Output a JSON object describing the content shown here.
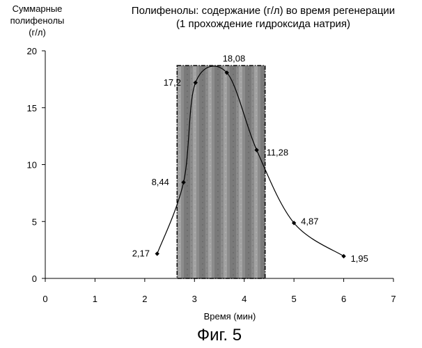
{
  "chart_data": {
    "type": "scatter",
    "title_lines": [
      "Полифенолы: содержание (г/л) во время регенерации",
      "(1 прохождение гидроксида натрия)"
    ],
    "ylabel_lines": [
      "Суммарные",
      "полифенолы",
      "(г/л)"
    ],
    "xlabel": "Время  (мин)",
    "xlim": [
      0,
      7
    ],
    "ylim": [
      0,
      20
    ],
    "xticks": [
      0,
      1,
      2,
      3,
      4,
      5,
      6,
      7
    ],
    "yticks": [
      0,
      5,
      10,
      15,
      20
    ],
    "grid": false,
    "highlight_region": {
      "x_start": 2.65,
      "x_end": 4.42,
      "y_end": 18.7
    },
    "points": [
      {
        "x": 2.25,
        "y": 2.17,
        "label": "2,17"
      },
      {
        "x": 2.78,
        "y": 8.44,
        "label": "8,44"
      },
      {
        "x": 3.02,
        "y": 17.2,
        "label": "17,2"
      },
      {
        "x": 3.65,
        "y": 18.08,
        "label": "18,08"
      },
      {
        "x": 4.25,
        "y": 11.28,
        "label": "11,28"
      },
      {
        "x": 5.0,
        "y": 4.87,
        "label": "4,87"
      },
      {
        "x": 6.0,
        "y": 1.95,
        "label": "1,95"
      }
    ],
    "line_color": "#000000"
  },
  "caption": "Фиг. 5"
}
